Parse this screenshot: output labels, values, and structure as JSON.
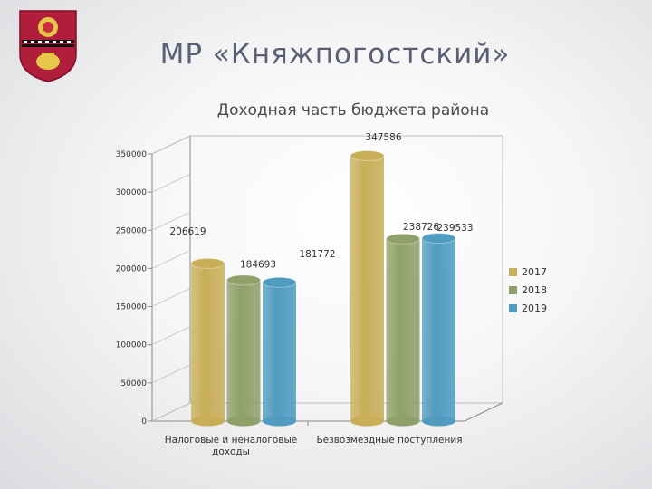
{
  "slide": {
    "title": "МР «Княжпогостский»"
  },
  "chart_data": {
    "type": "bar",
    "title": "Доходная часть бюджета района",
    "categories": [
      "Налоговые и неналоговые доходы",
      "Безвозмездные поступления"
    ],
    "category_lines": [
      [
        "Налоговые и неналоговые",
        "доходы"
      ],
      [
        "Безвозмездные поступления"
      ]
    ],
    "series": [
      {
        "name": "2017",
        "values": [
          206619,
          347586
        ],
        "color": "#c9ae58"
      },
      {
        "name": "2018",
        "values": [
          184693,
          238726
        ],
        "color": "#8fa06a"
      },
      {
        "name": "2019",
        "values": [
          181772,
          239533
        ],
        "color": "#4f9cc0"
      }
    ],
    "data_labels": [
      [
        "206619",
        "347586"
      ],
      [
        "184693",
        "238726"
      ],
      [
        "181772",
        "239533"
      ]
    ],
    "ylim": [
      0,
      350000
    ],
    "yticks": [
      0,
      50000,
      100000,
      150000,
      200000,
      250000,
      300000,
      350000
    ],
    "legend_position": "right",
    "grid": false
  }
}
